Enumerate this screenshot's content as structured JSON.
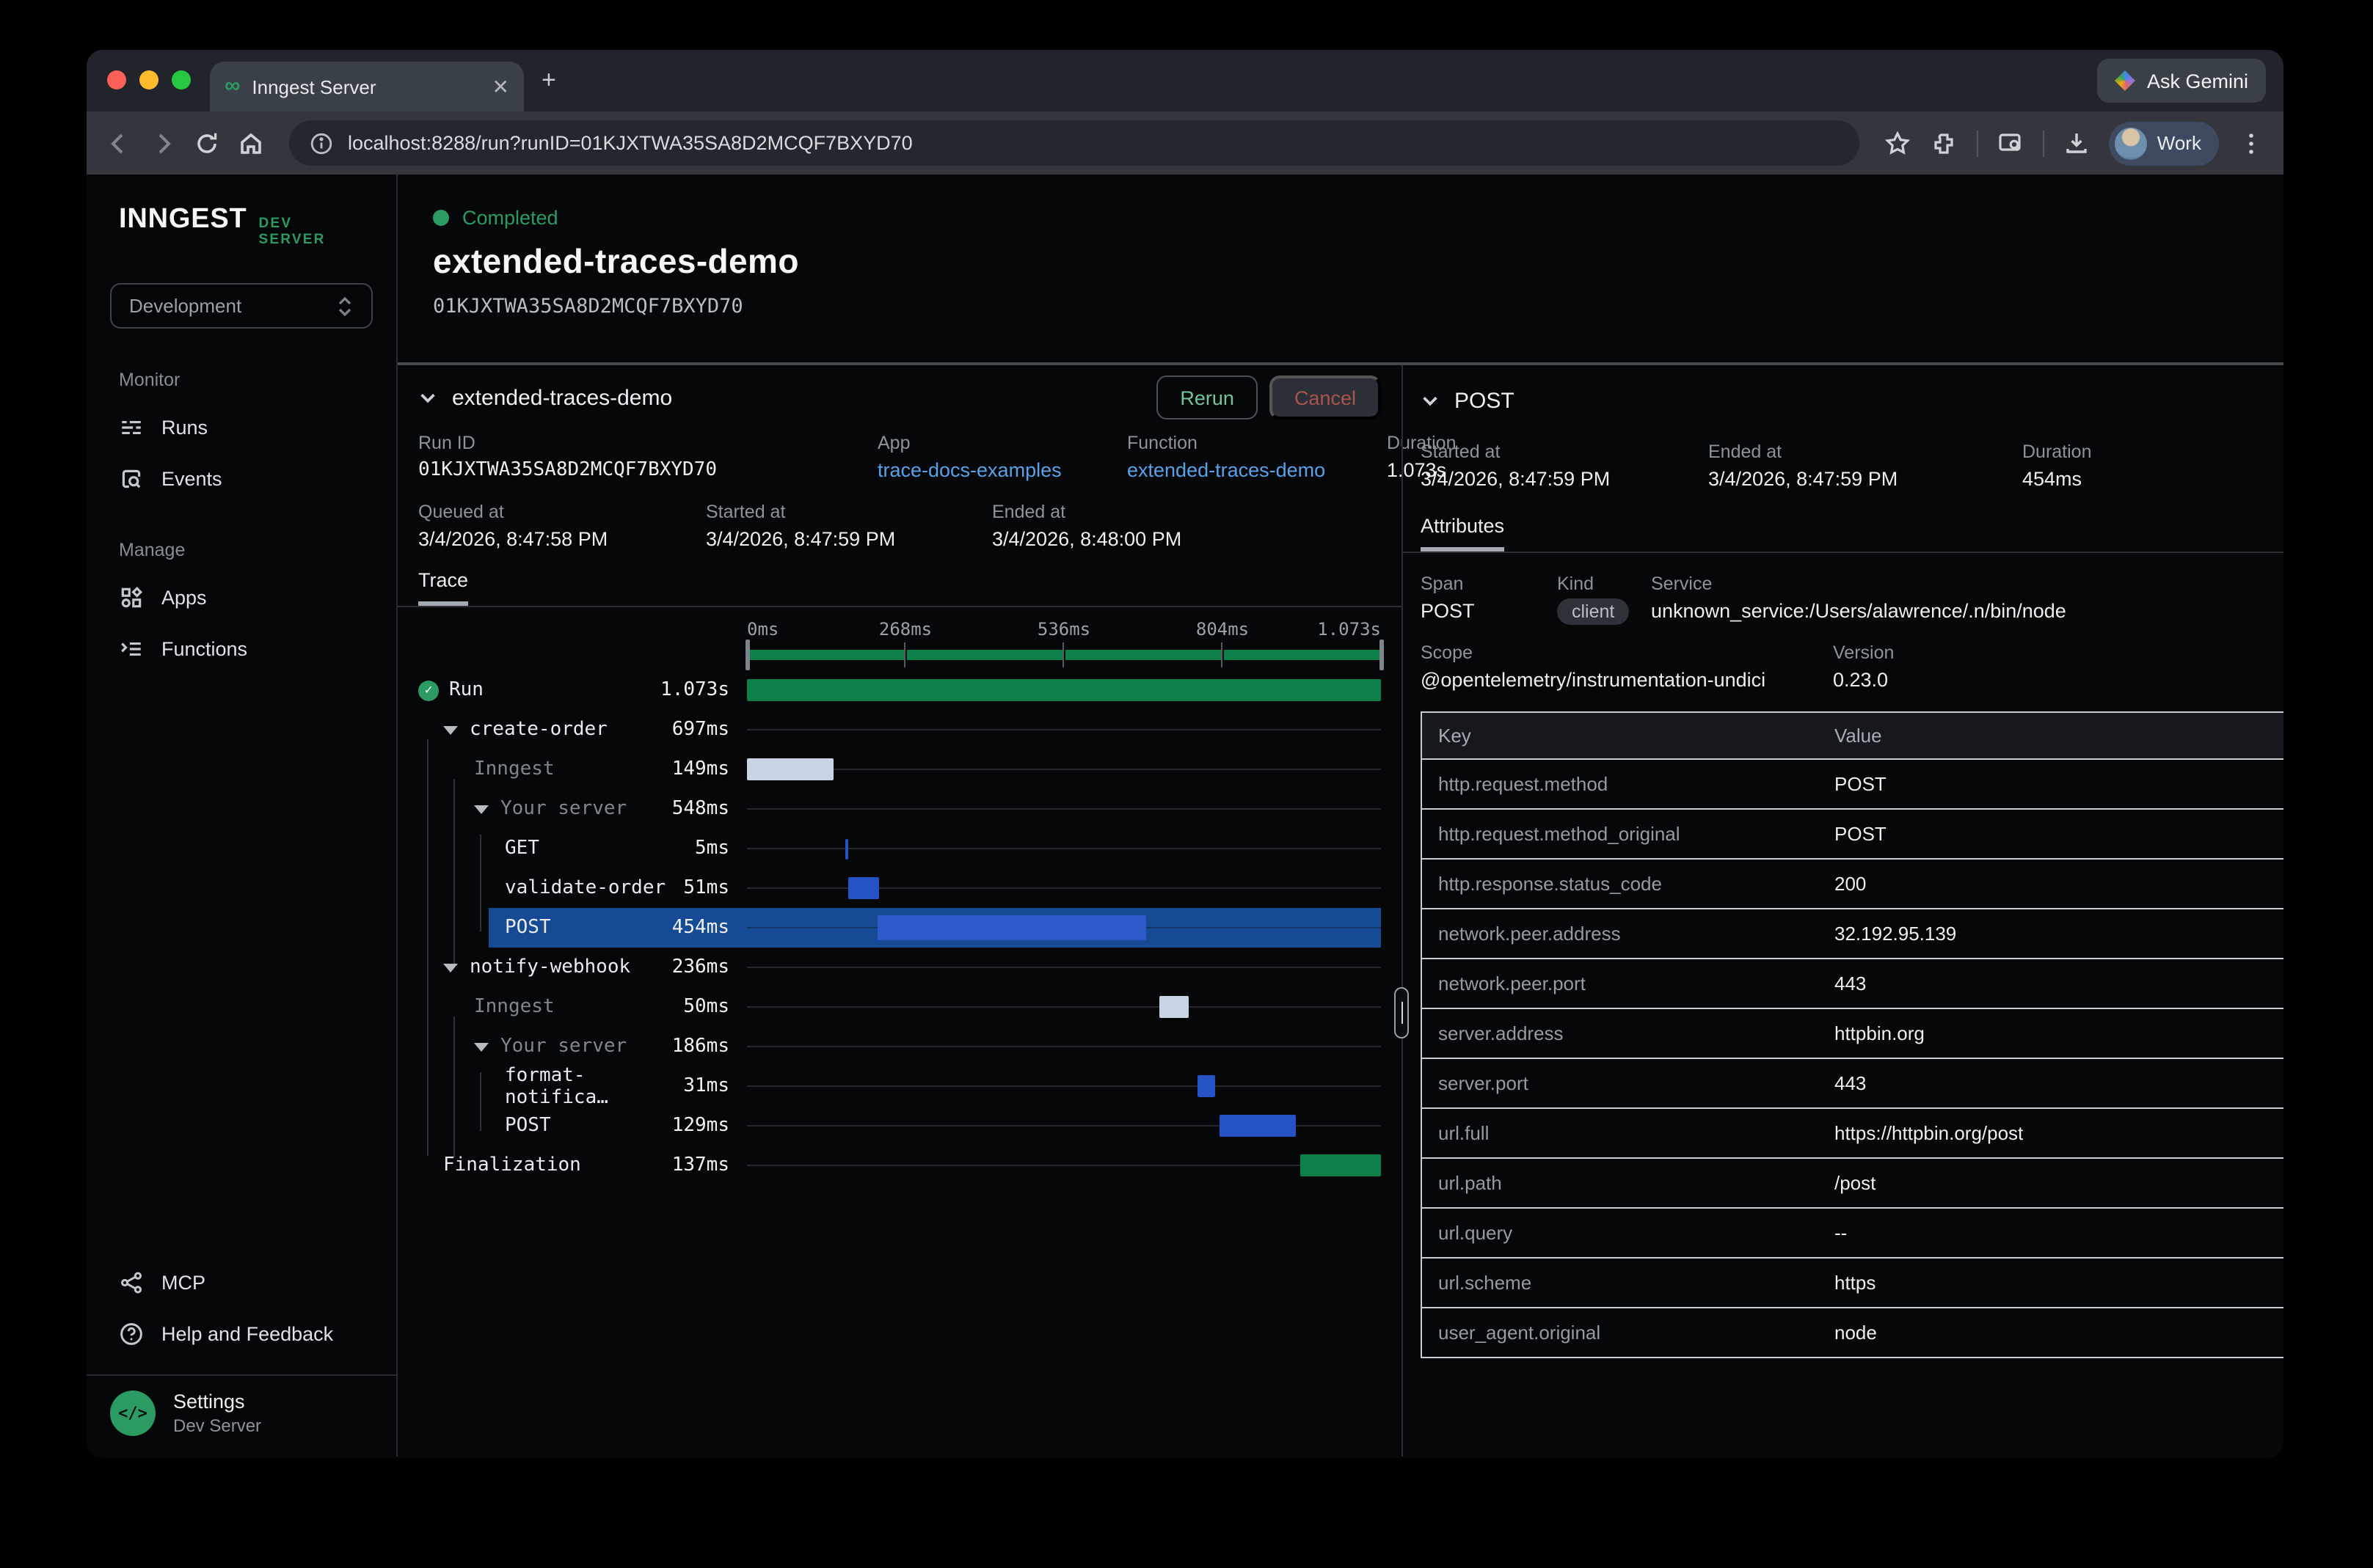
{
  "colors": {
    "accent_green": "#2c9b63",
    "bar_green": "#0d8049",
    "bar_light": "#c8d4e3",
    "bar_blue": "#2553c5",
    "bar_blue_bright": "#2e5ac9",
    "row_highlight": "#174a94",
    "link_blue": "#5aa2e8"
  },
  "browser": {
    "tab_title": "Inngest Server",
    "url": "localhost:8288/run?runID=01KJXTWA35SA8D2MCQF7BXYD70",
    "ask_gemini": "Ask Gemini",
    "profile": "Work"
  },
  "sidebar": {
    "brand": "INNGEST",
    "brand_badge": "DEV SERVER",
    "env_select": "Development",
    "sections": [
      {
        "label": "Monitor",
        "items": [
          {
            "label": "Runs"
          },
          {
            "label": "Events"
          }
        ]
      },
      {
        "label": "Manage",
        "items": [
          {
            "label": "Apps"
          },
          {
            "label": "Functions"
          }
        ]
      }
    ],
    "footer_items": [
      {
        "label": "MCP"
      },
      {
        "label": "Help and Feedback"
      }
    ],
    "settings": {
      "title": "Settings",
      "subtitle": "Dev Server"
    }
  },
  "run_header": {
    "status": "Completed",
    "title": "extended-traces-demo",
    "run_id": "01KJXTWA35SA8D2MCQF7BXYD70"
  },
  "trace_panel": {
    "title": "extended-traces-demo",
    "rerun": "Rerun",
    "cancel": "Cancel",
    "meta": {
      "run_id_label": "Run ID",
      "run_id": "01KJXTWA35SA8D2MCQF7BXYD70",
      "app_label": "App",
      "app": "trace-docs-examples",
      "function_label": "Function",
      "function": "extended-traces-demo",
      "duration_label": "Duration",
      "duration": "1.073s",
      "queued_label": "Queued at",
      "queued": "3/4/2026, 8:47:58 PM",
      "started_label": "Started at",
      "started": "3/4/2026, 8:47:59 PM",
      "ended_label": "Ended at",
      "ended": "3/4/2026, 8:48:00 PM"
    },
    "tab": "Trace",
    "axis": [
      {
        "label": "0ms",
        "pos": 0
      },
      {
        "label": "268ms",
        "pos": 25
      },
      {
        "label": "536ms",
        "pos": 50
      },
      {
        "label": "804ms",
        "pos": 75
      },
      {
        "label": "1.073s",
        "pos": 100
      }
    ],
    "rows": [
      {
        "name": "Run",
        "duration": "1.073s",
        "depth": 0,
        "icon": "check",
        "bar": {
          "start": 0,
          "width": 100,
          "color": "green"
        }
      },
      {
        "name": "create-order",
        "duration": "697ms",
        "depth": 1,
        "arrow": true
      },
      {
        "name": "Inngest",
        "duration": "149ms",
        "depth": 2,
        "dim": true,
        "bar": {
          "start": 0,
          "width": 13.6,
          "color": "light"
        }
      },
      {
        "name": "Your server",
        "duration": "548ms",
        "depth": 2,
        "dim": true,
        "arrow": true
      },
      {
        "name": "GET",
        "duration": "5ms",
        "depth": 3,
        "bar": {
          "start": 15.6,
          "width": 0.5,
          "color": "blue"
        }
      },
      {
        "name": "validate-order",
        "duration": "51ms",
        "depth": 3,
        "bar": {
          "start": 16.0,
          "width": 4.8,
          "color": "blue"
        }
      },
      {
        "name": "POST",
        "duration": "454ms",
        "depth": 3,
        "selected": true,
        "bar": {
          "start": 20.7,
          "width": 42.3,
          "color": "bright"
        }
      },
      {
        "name": "notify-webhook",
        "duration": "236ms",
        "depth": 1,
        "arrow": true
      },
      {
        "name": "Inngest",
        "duration": "50ms",
        "depth": 2,
        "dim": true,
        "bar": {
          "start": 65.0,
          "width": 4.7,
          "color": "light"
        }
      },
      {
        "name": "Your server",
        "duration": "186ms",
        "depth": 2,
        "dim": true,
        "arrow": true
      },
      {
        "name": "format-notifica…",
        "duration": "31ms",
        "depth": 3,
        "bar": {
          "start": 71.0,
          "width": 2.9,
          "color": "blue"
        }
      },
      {
        "name": "POST",
        "duration": "129ms",
        "depth": 3,
        "bar": {
          "start": 74.6,
          "width": 12.0,
          "color": "blue"
        }
      },
      {
        "name": "Finalization",
        "duration": "137ms",
        "depth": 1,
        "bar": {
          "start": 87.2,
          "width": 12.8,
          "color": "green"
        }
      }
    ]
  },
  "details_panel": {
    "title": "POST",
    "meta": {
      "started_label": "Started at",
      "started": "3/4/2026, 8:47:59 PM",
      "ended_label": "Ended at",
      "ended": "3/4/2026, 8:47:59 PM",
      "duration_label": "Duration",
      "duration": "454ms"
    },
    "tab": "Attributes",
    "span_label": "Span",
    "span": "POST",
    "kind_label": "Kind",
    "kind": "client",
    "service_label": "Service",
    "service": "unknown_service:/Users/alawrence/.n/bin/node",
    "scope_label": "Scope",
    "scope": "@opentelemetry/instrumentation-undici",
    "version_label": "Version",
    "version": "0.23.0",
    "table": {
      "key_header": "Key",
      "value_header": "Value",
      "rows": [
        [
          "http.request.method",
          "POST"
        ],
        [
          "http.request.method_original",
          "POST"
        ],
        [
          "http.response.status_code",
          "200"
        ],
        [
          "network.peer.address",
          "32.192.95.139"
        ],
        [
          "network.peer.port",
          "443"
        ],
        [
          "server.address",
          "httpbin.org"
        ],
        [
          "server.port",
          "443"
        ],
        [
          "url.full",
          "https://httpbin.org/post"
        ],
        [
          "url.path",
          "/post"
        ],
        [
          "url.query",
          "--"
        ],
        [
          "url.scheme",
          "https"
        ],
        [
          "user_agent.original",
          "node"
        ]
      ]
    }
  }
}
